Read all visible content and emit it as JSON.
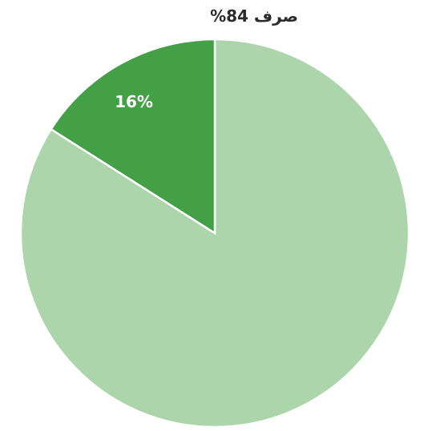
{
  "chart_data": {
    "type": "pie",
    "title": "",
    "slices": [
      {
        "label": "صرف",
        "value": 84,
        "display": "صرف 84%",
        "color": "#acd5ab",
        "label_position": "outside"
      },
      {
        "label": "",
        "value": 16,
        "display": "16%",
        "color": "#43a047",
        "label_position": "inside"
      }
    ],
    "start_angle_deg": 0,
    "direction": "clockwise",
    "legend": "none"
  }
}
